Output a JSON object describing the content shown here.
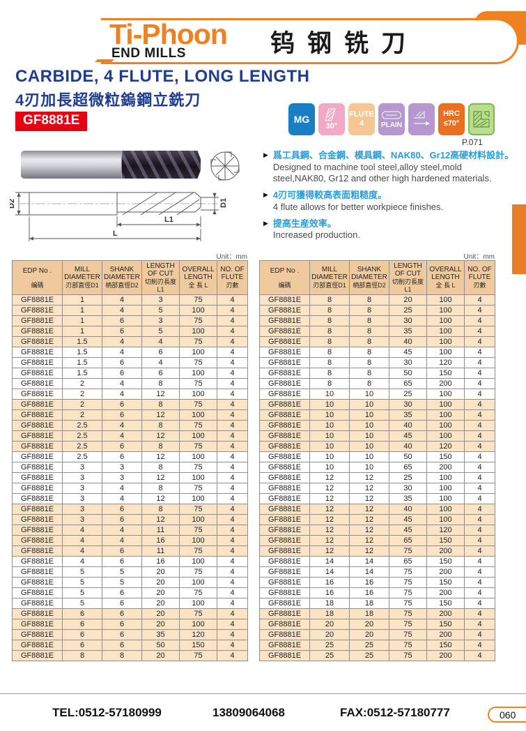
{
  "header": {
    "brand": "Ti-Phoon",
    "brand_sub": "END MILLS",
    "title_cn": "钨钢铣刀"
  },
  "product": {
    "title_en": "CARBIDE, 4 FLUTE, LONG LENGTH",
    "title_cn": "4刃加長超微粒鎢鋼立銑刀",
    "model": "GF8881E",
    "page_ref": "P.071"
  },
  "badges": {
    "mg": "MG",
    "helix_angle": "30°",
    "flute_line1": "FLUTE",
    "flute_line2": "4",
    "plain": "PLAIN",
    "hrc_line1": "HRC",
    "hrc_line2": "≤70°"
  },
  "diagram": {
    "d2": "D2",
    "d1": "D1",
    "l1": "L1",
    "l": "L"
  },
  "features": [
    {
      "cn": "爲工具鋼、合金鋼、模具鋼、NAK80、Gr12高硬材料設計。",
      "en": "Designed to machine tool steel,alloy steel,mold steel,NAK80, Gr12 and other high hardened materials."
    },
    {
      "cn": "4刃可獲得較高表面粗糙度。",
      "en": "4 flute allows for better workpiece finishes."
    },
    {
      "cn": "提高生産效率。",
      "en": "Increased production."
    }
  ],
  "unit_label": "Unit：mm",
  "tables": {
    "columns": [
      {
        "en": "EDP No .",
        "cn": "编碼"
      },
      {
        "en": "MILL DIAMETER",
        "cn": "刃部直徑D1"
      },
      {
        "en": "SHANK DIAMETER",
        "cn": "柄部直徑D2"
      },
      {
        "en": "LENGTH OF CUT",
        "cn": "切削刃長度L1"
      },
      {
        "en": "OVERALL LENGTH",
        "cn": "全 長 L"
      },
      {
        "en": "NO. OF FLUTE",
        "cn": "刃數"
      }
    ],
    "left": {
      "rows": [
        [
          "GF8881E",
          "1",
          "4",
          "3",
          "75",
          "4"
        ],
        [
          "GF8881E",
          "1",
          "4",
          "5",
          "100",
          "4"
        ],
        [
          "GF8881E",
          "1",
          "6",
          "3",
          "75",
          "4"
        ],
        [
          "GF8881E",
          "1",
          "6",
          "5",
          "100",
          "4"
        ],
        [
          "GF8881E",
          "1.5",
          "4",
          "4",
          "75",
          "4"
        ],
        [
          "GF8881E",
          "1.5",
          "4",
          "6",
          "100",
          "4"
        ],
        [
          "GF8881E",
          "1.5",
          "6",
          "4",
          "75",
          "4"
        ],
        [
          "GF8881E",
          "1.5",
          "6",
          "6",
          "100",
          "4"
        ],
        [
          "GF8881E",
          "2",
          "4",
          "8",
          "75",
          "4"
        ],
        [
          "GF8881E",
          "2",
          "4",
          "12",
          "100",
          "4"
        ],
        [
          "GF8881E",
          "2",
          "6",
          "8",
          "75",
          "4"
        ],
        [
          "GF8881E",
          "2",
          "6",
          "12",
          "100",
          "4"
        ],
        [
          "GF8881E",
          "2.5",
          "4",
          "8",
          "75",
          "4"
        ],
        [
          "GF8881E",
          "2.5",
          "4",
          "12",
          "100",
          "4"
        ],
        [
          "GF8881E",
          "2.5",
          "6",
          "8",
          "75",
          "4"
        ],
        [
          "GF8881E",
          "2.5",
          "6",
          "12",
          "100",
          "4"
        ],
        [
          "GF8881E",
          "3",
          "3",
          "8",
          "75",
          "4"
        ],
        [
          "GF8881E",
          "3",
          "3",
          "12",
          "100",
          "4"
        ],
        [
          "GF8881E",
          "3",
          "4",
          "8",
          "75",
          "4"
        ],
        [
          "GF8881E",
          "3",
          "4",
          "12",
          "100",
          "4"
        ],
        [
          "GF8881E",
          "3",
          "6",
          "8",
          "75",
          "4"
        ],
        [
          "GF8881E",
          "3",
          "6",
          "12",
          "100",
          "4"
        ],
        [
          "GF8881E",
          "4",
          "4",
          "11",
          "75",
          "4"
        ],
        [
          "GF8881E",
          "4",
          "4",
          "16",
          "100",
          "4"
        ],
        [
          "GF8881E",
          "4",
          "6",
          "11",
          "75",
          "4"
        ],
        [
          "GF8881E",
          "4",
          "6",
          "16",
          "100",
          "4"
        ],
        [
          "GF8881E",
          "5",
          "5",
          "20",
          "75",
          "4"
        ],
        [
          "GF8881E",
          "5",
          "5",
          "20",
          "100",
          "4"
        ],
        [
          "GF8881E",
          "5",
          "6",
          "20",
          "75",
          "4"
        ],
        [
          "GF8881E",
          "5",
          "6",
          "20",
          "100",
          "4"
        ],
        [
          "GF8881E",
          "6",
          "6",
          "20",
          "75",
          "4"
        ],
        [
          "GF8881E",
          "6",
          "6",
          "20",
          "100",
          "4"
        ],
        [
          "GF8881E",
          "6",
          "6",
          "35",
          "120",
          "4"
        ],
        [
          "GF8881E",
          "6",
          "6",
          "50",
          "150",
          "4"
        ],
        [
          "GF8881E",
          "8",
          "8",
          "20",
          "75",
          "4"
        ]
      ]
    },
    "right": {
      "rows": [
        [
          "GF8881E",
          "8",
          "8",
          "20",
          "100",
          "4"
        ],
        [
          "GF8881E",
          "8",
          "8",
          "25",
          "100",
          "4"
        ],
        [
          "GF8881E",
          "8",
          "8",
          "30",
          "100",
          "4"
        ],
        [
          "GF8881E",
          "8",
          "8",
          "35",
          "100",
          "4"
        ],
        [
          "GF8881E",
          "8",
          "8",
          "40",
          "100",
          "4"
        ],
        [
          "GF8881E",
          "8",
          "8",
          "45",
          "100",
          "4"
        ],
        [
          "GF8881E",
          "8",
          "8",
          "30",
          "120",
          "4"
        ],
        [
          "GF8881E",
          "8",
          "8",
          "50",
          "150",
          "4"
        ],
        [
          "GF8881E",
          "8",
          "8",
          "65",
          "200",
          "4"
        ],
        [
          "GF8881E",
          "10",
          "10",
          "25",
          "100",
          "4"
        ],
        [
          "GF8881E",
          "10",
          "10",
          "30",
          "100",
          "4"
        ],
        [
          "GF8881E",
          "10",
          "10",
          "35",
          "100",
          "4"
        ],
        [
          "GF8881E",
          "10",
          "10",
          "40",
          "100",
          "4"
        ],
        [
          "GF8881E",
          "10",
          "10",
          "45",
          "100",
          "4"
        ],
        [
          "GF8881E",
          "10",
          "10",
          "40",
          "120",
          "4"
        ],
        [
          "GF8881E",
          "10",
          "10",
          "50",
          "150",
          "4"
        ],
        [
          "GF8881E",
          "10",
          "10",
          "65",
          "200",
          "4"
        ],
        [
          "GF8881E",
          "12",
          "12",
          "25",
          "100",
          "4"
        ],
        [
          "GF8881E",
          "12",
          "12",
          "30",
          "100",
          "4"
        ],
        [
          "GF8881E",
          "12",
          "12",
          "35",
          "100",
          "4"
        ],
        [
          "GF8881E",
          "12",
          "12",
          "40",
          "100",
          "4"
        ],
        [
          "GF8881E",
          "12",
          "12",
          "45",
          "100",
          "4"
        ],
        [
          "GF8881E",
          "12",
          "12",
          "45",
          "120",
          "4"
        ],
        [
          "GF8881E",
          "12",
          "12",
          "65",
          "150",
          "4"
        ],
        [
          "GF8881E",
          "12",
          "12",
          "75",
          "200",
          "4"
        ],
        [
          "GF8881E",
          "14",
          "14",
          "65",
          "150",
          "4"
        ],
        [
          "GF8881E",
          "14",
          "14",
          "75",
          "200",
          "4"
        ],
        [
          "GF8881E",
          "16",
          "16",
          "75",
          "150",
          "4"
        ],
        [
          "GF8881E",
          "16",
          "16",
          "75",
          "200",
          "4"
        ],
        [
          "GF8881E",
          "18",
          "18",
          "75",
          "150",
          "4"
        ],
        [
          "GF8881E",
          "18",
          "18",
          "75",
          "200",
          "4"
        ],
        [
          "GF8881E",
          "20",
          "20",
          "75",
          "150",
          "4"
        ],
        [
          "GF8881E",
          "20",
          "20",
          "75",
          "200",
          "4"
        ],
        [
          "GF8881E",
          "25",
          "25",
          "75",
          "150",
          "4"
        ],
        [
          "GF8881E",
          "25",
          "25",
          "75",
          "200",
          "4"
        ]
      ]
    }
  },
  "footer": {
    "tel": "TEL:0512-57180999",
    "mobile": "13809064068",
    "fax": "FAX:0512-57180777",
    "page_number": "060"
  },
  "colors": {
    "brand_orange": "#EF8121",
    "title_blue": "#1E3D8F",
    "model_red": "#E60012",
    "feature_blue": "#2B9CD8",
    "table_header_bg": "#F0CA9F",
    "table_band_bg": "#FBE3C5",
    "badge_mg": "#1A7EC2",
    "badge_helix": "#F2A9C6",
    "badge_flute": "#F6C795",
    "badge_plain": "#B697CF",
    "badge_hrc": "#E8701F",
    "badge_pageref": "#BCDC92"
  }
}
